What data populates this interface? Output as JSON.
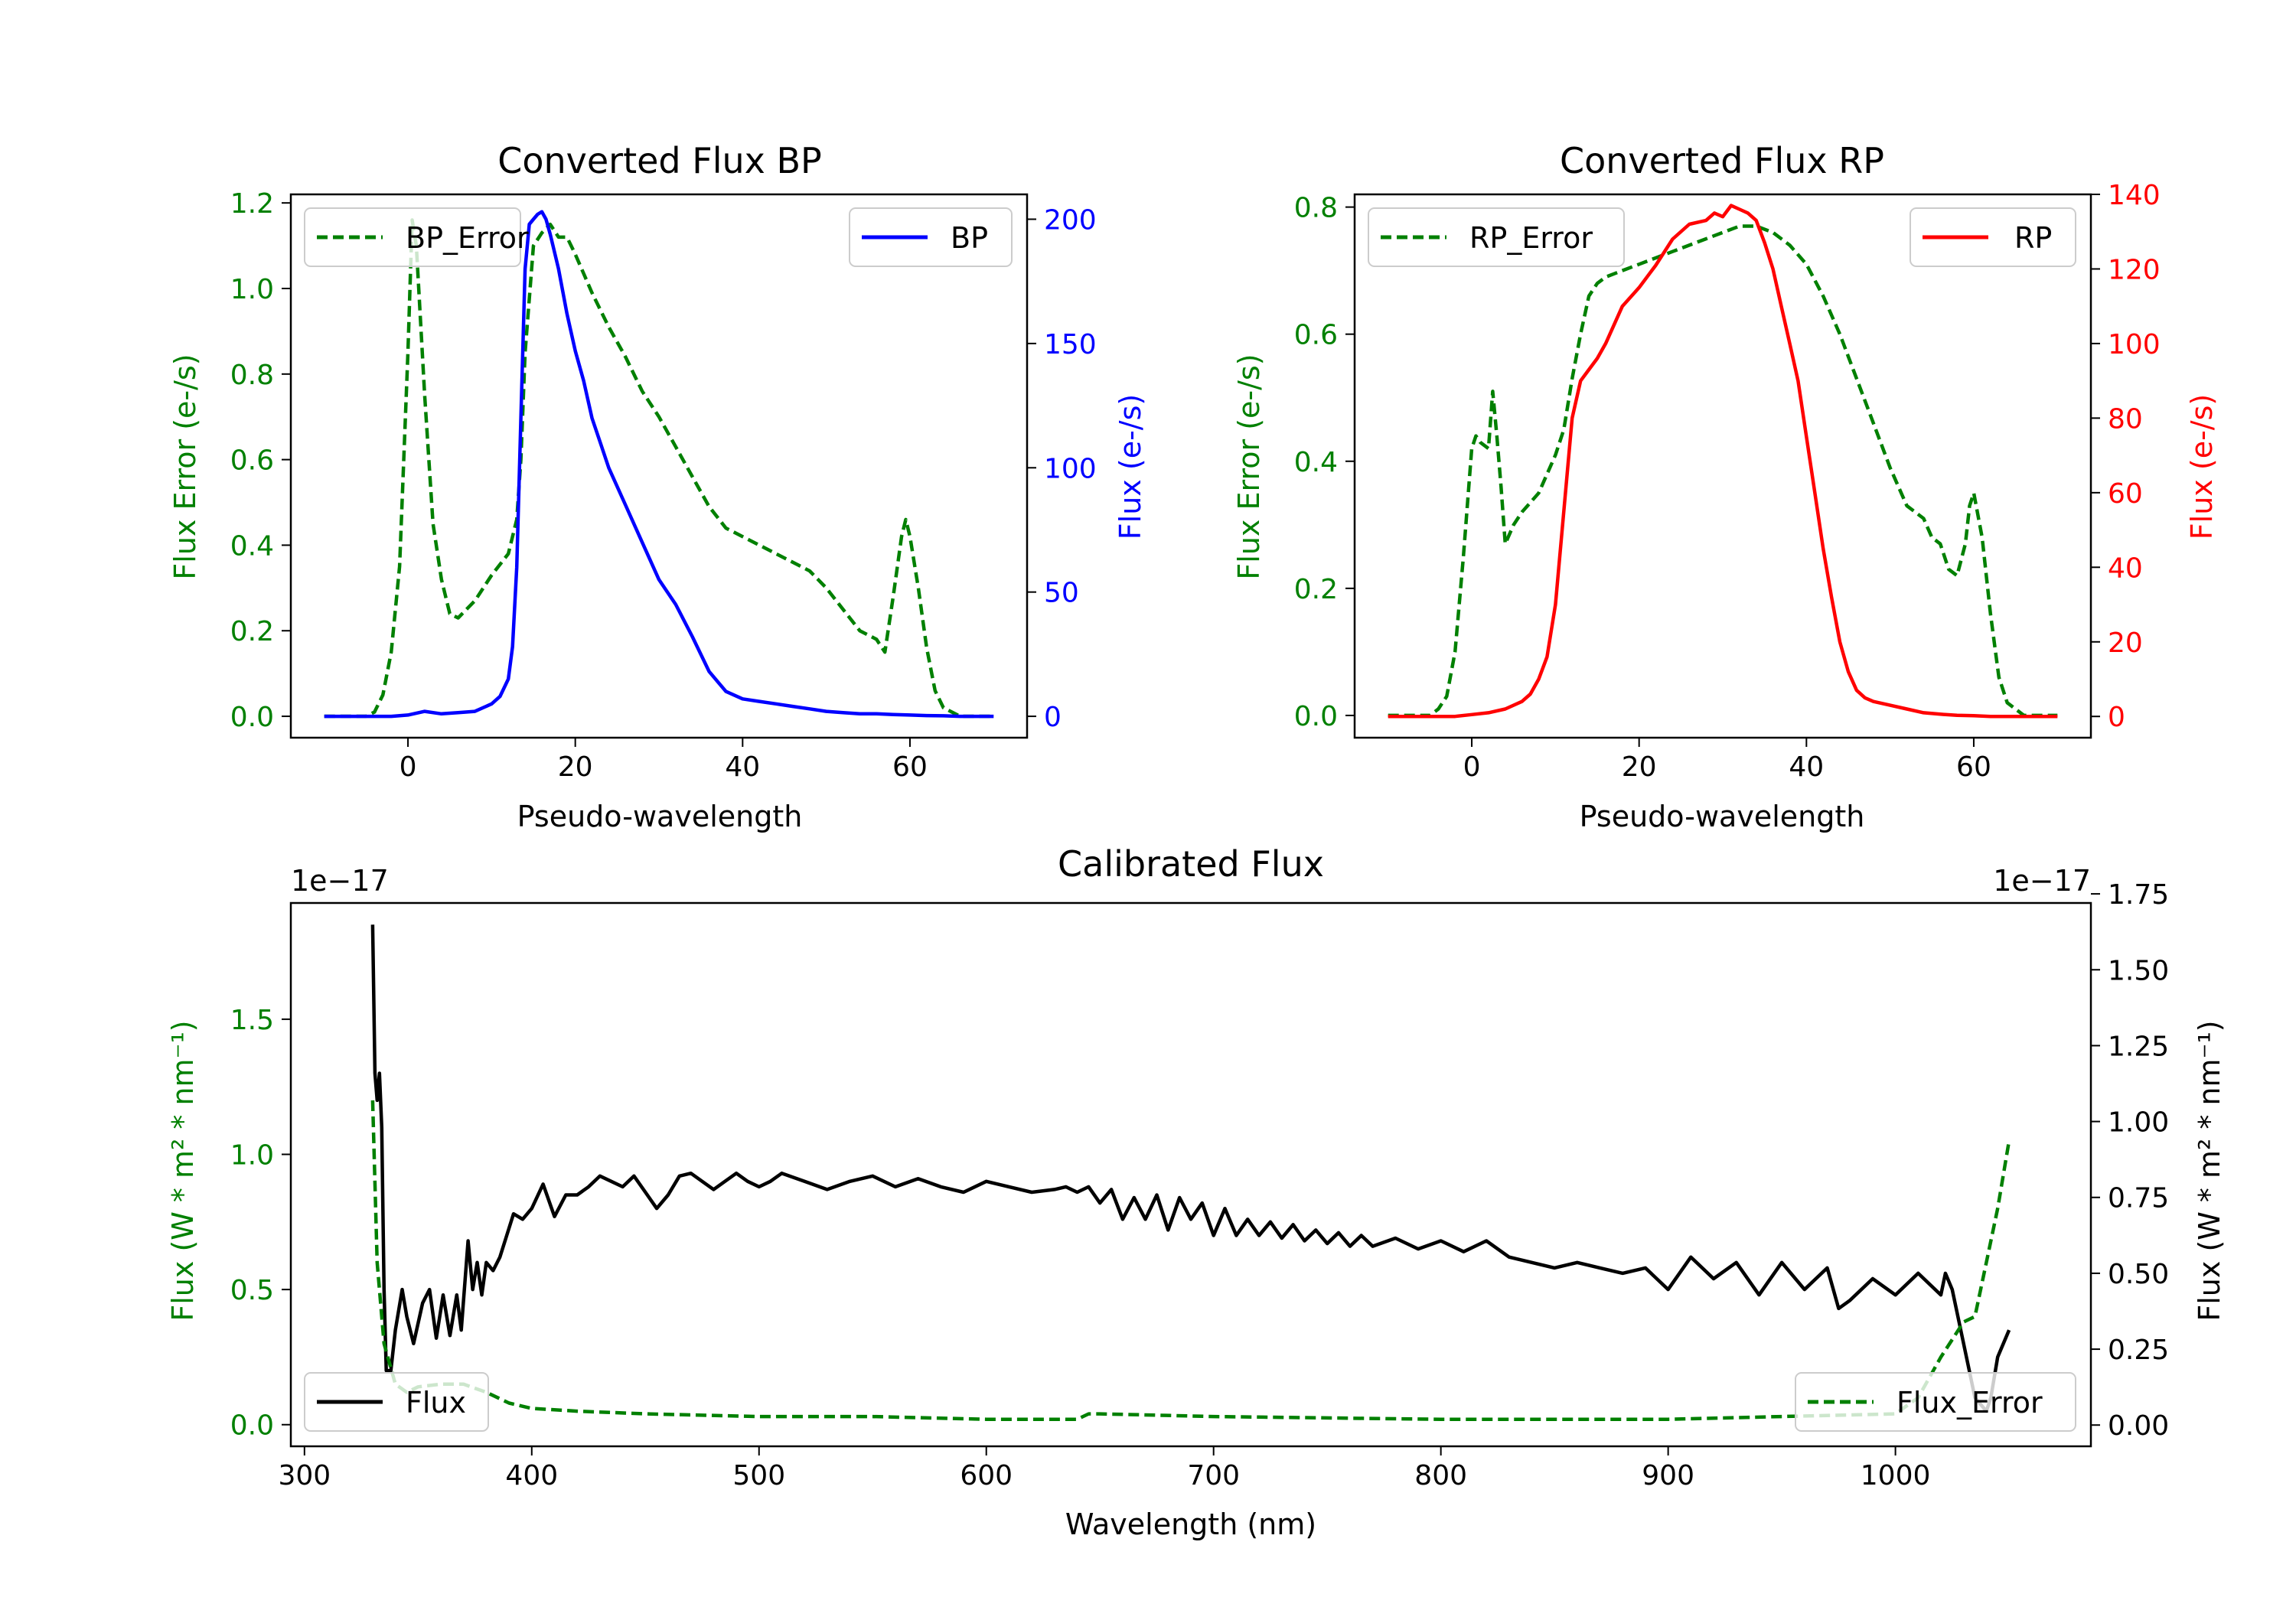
{
  "colors": {
    "green": "#008000",
    "blue": "#0000ff",
    "red": "#ff0000",
    "black": "#000000"
  },
  "chart_data": [
    {
      "id": "bp",
      "type": "line",
      "title": "Converted Flux BP",
      "xlabel": "Pseudo-wavelength",
      "ylabel_left": "Flux Error (e-/s)",
      "ylabel_right": "Flux (e-/s)",
      "xlim": [
        -14,
        74
      ],
      "ylim_left": [
        -0.05,
        1.22
      ],
      "ylim_right": [
        -8.6,
        210
      ],
      "xticks": [
        0,
        20,
        40,
        60
      ],
      "yticks_left": [
        "0.0",
        "0.2",
        "0.4",
        "0.6",
        "0.8",
        "1.0",
        "1.2"
      ],
      "yticks_right": [
        "0",
        "50",
        "100",
        "150",
        "200"
      ],
      "legend_left": "BP_Error",
      "legend_right": "BP",
      "series": [
        {
          "name": "BP_Error",
          "axis": "left",
          "color": "#008000",
          "dash": true,
          "x": [
            -10,
            -5,
            -4,
            -3,
            -2,
            -1,
            0,
            0.5,
            1,
            2,
            3,
            4,
            5,
            6,
            8,
            10,
            12,
            13,
            13.5,
            14,
            15,
            16,
            17,
            18,
            19,
            20,
            22,
            24,
            26,
            28,
            30,
            32,
            34,
            36,
            38,
            40,
            42,
            44,
            46,
            48,
            50,
            52,
            54,
            56,
            57,
            58,
            59,
            59.5,
            60,
            61,
            62,
            63,
            64,
            66,
            68,
            70
          ],
          "y": [
            0,
            0,
            0.01,
            0.05,
            0.15,
            0.35,
            0.85,
            1.16,
            1.1,
            0.75,
            0.45,
            0.32,
            0.24,
            0.23,
            0.27,
            0.33,
            0.38,
            0.46,
            0.6,
            0.85,
            1.1,
            1.13,
            1.15,
            1.12,
            1.12,
            1.08,
            0.99,
            0.91,
            0.84,
            0.76,
            0.7,
            0.63,
            0.56,
            0.49,
            0.44,
            0.42,
            0.4,
            0.38,
            0.36,
            0.34,
            0.3,
            0.25,
            0.2,
            0.18,
            0.15,
            0.28,
            0.42,
            0.46,
            0.42,
            0.3,
            0.16,
            0.06,
            0.02,
            0,
            0,
            0
          ]
        },
        {
          "name": "BP",
          "axis": "right",
          "color": "#0000ff",
          "dash": false,
          "x": [
            -10,
            -2,
            0,
            2,
            4,
            6,
            8,
            10,
            11,
            12,
            12.5,
            13,
            13.5,
            14,
            14.5,
            15,
            15.5,
            16,
            16.5,
            17,
            18,
            19,
            20,
            21,
            22,
            23,
            24,
            26,
            28,
            30,
            32,
            34,
            36,
            38,
            40,
            42,
            44,
            46,
            48,
            50,
            52,
            54,
            56,
            58,
            60,
            62,
            64,
            66,
            68,
            70
          ],
          "y": [
            0,
            0,
            0.5,
            2,
            1,
            1.5,
            2,
            5,
            8,
            15,
            28,
            60,
            120,
            180,
            198,
            200,
            202,
            203,
            200,
            194,
            180,
            162,
            147,
            135,
            120,
            110,
            100,
            85,
            70,
            55,
            45,
            32,
            18,
            10,
            7,
            6,
            5,
            4,
            3,
            2,
            1.5,
            1,
            1,
            0.7,
            0.5,
            0.3,
            0.2,
            0,
            0,
            0
          ]
        }
      ]
    },
    {
      "id": "rp",
      "type": "line",
      "title": "Converted Flux RP",
      "xlabel": "Pseudo-wavelength",
      "ylabel_left": "Flux Error (e-/s)",
      "ylabel_right": "Flux (e-/s)",
      "xlim": [
        -14,
        74
      ],
      "ylim_left": [
        -0.035,
        0.82
      ],
      "ylim_right": [
        -5.7,
        140
      ],
      "xticks": [
        0,
        20,
        40,
        60
      ],
      "yticks_left": [
        "0.0",
        "0.2",
        "0.4",
        "0.6",
        "0.8"
      ],
      "yticks_right": [
        "0",
        "20",
        "40",
        "60",
        "80",
        "100",
        "120",
        "140"
      ],
      "legend_left": "RP_Error",
      "legend_right": "RP",
      "series": [
        {
          "name": "RP_Error",
          "axis": "left",
          "color": "#008000",
          "dash": true,
          "x": [
            -10,
            -5,
            -4,
            -3,
            -2,
            -1,
            0,
            0.5,
            1,
            2,
            2.5,
            3,
            3.5,
            4,
            5,
            6,
            8,
            10,
            11,
            12,
            13,
            14,
            15,
            16,
            18,
            20,
            22,
            24,
            26,
            28,
            30,
            32,
            34,
            36,
            38,
            40,
            42,
            44,
            46,
            48,
            50,
            52,
            54,
            55,
            56,
            57,
            58,
            59,
            59.5,
            60,
            61,
            62,
            63,
            64,
            66,
            68,
            70
          ],
          "y": [
            0,
            0,
            0.01,
            0.03,
            0.1,
            0.25,
            0.42,
            0.44,
            0.43,
            0.42,
            0.51,
            0.44,
            0.36,
            0.27,
            0.3,
            0.32,
            0.35,
            0.41,
            0.45,
            0.53,
            0.6,
            0.66,
            0.68,
            0.69,
            0.7,
            0.71,
            0.72,
            0.73,
            0.74,
            0.75,
            0.76,
            0.77,
            0.77,
            0.76,
            0.74,
            0.71,
            0.66,
            0.6,
            0.53,
            0.46,
            0.39,
            0.33,
            0.31,
            0.28,
            0.27,
            0.23,
            0.22,
            0.27,
            0.33,
            0.35,
            0.28,
            0.16,
            0.06,
            0.02,
            0,
            0,
            0
          ]
        },
        {
          "name": "RP",
          "axis": "right",
          "color": "#ff0000",
          "dash": false,
          "x": [
            -10,
            -2,
            0,
            2,
            4,
            6,
            7,
            8,
            9,
            10,
            11,
            12,
            13,
            14,
            15,
            16,
            18,
            20,
            22,
            24,
            26,
            28,
            29,
            30,
            31,
            32,
            33,
            34,
            35,
            36,
            37,
            38,
            39,
            40,
            41,
            42,
            43,
            44,
            45,
            46,
            47,
            48,
            50,
            52,
            54,
            56,
            58,
            60,
            62,
            64,
            66,
            68,
            70
          ],
          "y": [
            0,
            0,
            0.5,
            1,
            2,
            4,
            6,
            10,
            16,
            30,
            55,
            80,
            90,
            93,
            96,
            100,
            110,
            115,
            121,
            128,
            132,
            133,
            135,
            134,
            137,
            136,
            135,
            133,
            127,
            120,
            110,
            100,
            90,
            75,
            60,
            45,
            32,
            20,
            12,
            7,
            5,
            4,
            3,
            2,
            1,
            0.6,
            0.3,
            0.2,
            0,
            0,
            0,
            0,
            0
          ]
        }
      ]
    },
    {
      "id": "calibrated",
      "type": "line",
      "title": "Calibrated Flux",
      "xlabel": "Wavelength (nm)",
      "ylabel_left": "Flux (W * m² * nm⁻¹)",
      "ylabel_right": "Flux (W * m² * nm⁻¹)",
      "scale_label": "1e−17",
      "xlim": [
        294,
        1086
      ],
      "ylim_left": [
        -0.08,
        1.93
      ],
      "ylim_right": [
        -0.07,
        1.72
      ],
      "xticks": [
        300,
        400,
        500,
        600,
        700,
        800,
        900,
        1000
      ],
      "yticks_left": [
        "0.0",
        "0.5",
        "1.0",
        "1.5"
      ],
      "yticks_right": [
        "0.00",
        "0.25",
        "0.50",
        "0.75",
        "1.00",
        "1.25",
        "1.50",
        "1.75"
      ],
      "legend_left": "Flux",
      "legend_right": "Flux_Error",
      "series": [
        {
          "name": "Flux",
          "axis": "left",
          "color": "#000000",
          "dash": false,
          "x": [
            330,
            331,
            332,
            333,
            334,
            335,
            336,
            338,
            340,
            343,
            345,
            348,
            352,
            355,
            358,
            361,
            364,
            367,
            369,
            372,
            374,
            376,
            378,
            380,
            383,
            386,
            389,
            392,
            396,
            400,
            405,
            410,
            415,
            420,
            425,
            430,
            435,
            440,
            445,
            450,
            455,
            460,
            465,
            470,
            475,
            480,
            485,
            490,
            495,
            500,
            505,
            510,
            520,
            530,
            540,
            550,
            560,
            570,
            580,
            590,
            600,
            610,
            620,
            630,
            635,
            640,
            645,
            650,
            655,
            660,
            665,
            670,
            675,
            680,
            685,
            690,
            695,
            700,
            705,
            710,
            715,
            720,
            725,
            730,
            735,
            740,
            745,
            750,
            755,
            760,
            765,
            770,
            780,
            790,
            800,
            810,
            820,
            830,
            840,
            850,
            860,
            870,
            880,
            890,
            900,
            910,
            920,
            930,
            940,
            950,
            960,
            970,
            975,
            980,
            990,
            1000,
            1010,
            1020,
            1022,
            1025,
            1030,
            1035,
            1040,
            1042,
            1045,
            1050
          ],
          "y": [
            1.85,
            1.3,
            1.2,
            1.3,
            1.1,
            0.5,
            0.2,
            0.2,
            0.35,
            0.5,
            0.4,
            0.3,
            0.45,
            0.5,
            0.32,
            0.48,
            0.33,
            0.48,
            0.35,
            0.68,
            0.5,
            0.6,
            0.48,
            0.6,
            0.57,
            0.62,
            0.7,
            0.78,
            0.76,
            0.8,
            0.89,
            0.77,
            0.85,
            0.85,
            0.88,
            0.92,
            0.9,
            0.88,
            0.92,
            0.86,
            0.8,
            0.85,
            0.92,
            0.93,
            0.9,
            0.87,
            0.9,
            0.93,
            0.9,
            0.88,
            0.9,
            0.93,
            0.9,
            0.87,
            0.9,
            0.92,
            0.88,
            0.91,
            0.88,
            0.86,
            0.9,
            0.88,
            0.86,
            0.87,
            0.88,
            0.86,
            0.88,
            0.82,
            0.87,
            0.76,
            0.84,
            0.76,
            0.85,
            0.72,
            0.84,
            0.76,
            0.82,
            0.7,
            0.8,
            0.7,
            0.76,
            0.7,
            0.75,
            0.69,
            0.74,
            0.68,
            0.72,
            0.67,
            0.71,
            0.66,
            0.7,
            0.66,
            0.69,
            0.65,
            0.68,
            0.64,
            0.68,
            0.62,
            0.6,
            0.58,
            0.6,
            0.58,
            0.56,
            0.58,
            0.5,
            0.62,
            0.54,
            0.6,
            0.48,
            0.6,
            0.5,
            0.58,
            0.43,
            0.46,
            0.54,
            0.48,
            0.56,
            0.48,
            0.56,
            0.5,
            0.3,
            0.1,
            0.05,
            0.1,
            0.25,
            0.35
          ]
        },
        {
          "name": "Flux_Error",
          "axis": "left",
          "color": "#008000",
          "dash": true,
          "x": [
            330,
            332,
            335,
            340,
            345,
            350,
            360,
            370,
            380,
            390,
            400,
            420,
            450,
            500,
            550,
            600,
            630,
            640,
            645,
            650,
            700,
            800,
            900,
            950,
            1000,
            1010,
            1020,
            1030,
            1035,
            1040,
            1045,
            1050
          ],
          "y": [
            1.2,
            0.6,
            0.3,
            0.15,
            0.12,
            0.14,
            0.15,
            0.15,
            0.12,
            0.08,
            0.06,
            0.05,
            0.04,
            0.03,
            0.03,
            0.02,
            0.02,
            0.02,
            0.04,
            0.04,
            0.03,
            0.02,
            0.02,
            0.03,
            0.04,
            0.1,
            0.25,
            0.38,
            0.4,
            0.6,
            0.8,
            1.05
          ]
        }
      ]
    }
  ]
}
